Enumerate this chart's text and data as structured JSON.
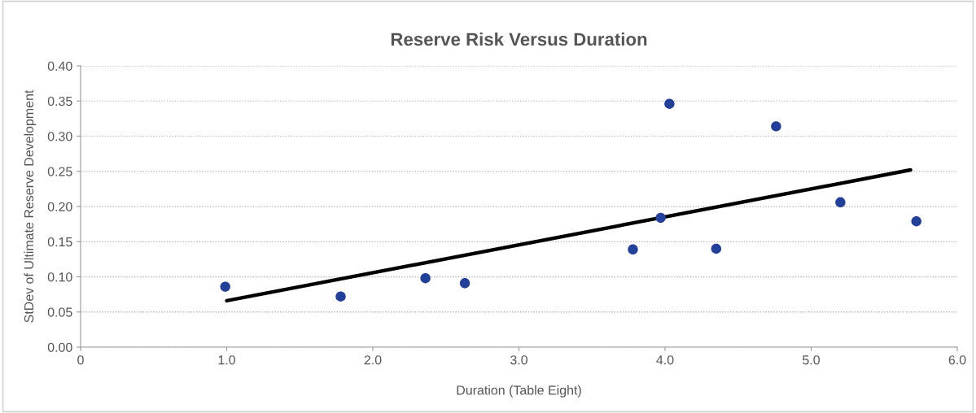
{
  "chart_data": {
    "type": "scatter",
    "title": "Reserve Risk Versus Duration",
    "xlabel": "Duration (Table Eight)",
    "ylabel": "StDev of Ultimate Reserve Development",
    "series": [
      {
        "marker": "circle",
        "color": "#22409a",
        "x": [
          0.99,
          1.78,
          2.36,
          2.63,
          3.78,
          3.97,
          4.03,
          4.35,
          4.76,
          5.2,
          5.72
        ],
        "values": [
          0.086,
          0.072,
          0.098,
          0.091,
          0.139,
          0.184,
          0.346,
          0.14,
          0.314,
          0.206,
          0.179
        ]
      },
      {
        "type": "line",
        "marker": "none",
        "color": "#000000",
        "x": [
          1.0,
          5.68
        ],
        "values": [
          0.066,
          0.252
        ]
      }
    ],
    "xlim": [
      0,
      6
    ],
    "xticks": [
      {
        "value": 0,
        "label": "0"
      },
      {
        "value": 1,
        "label": "1.0"
      },
      {
        "value": 2,
        "label": "2.0"
      },
      {
        "value": 3,
        "label": "3.0"
      },
      {
        "value": 4,
        "label": "4.0"
      },
      {
        "value": 5,
        "label": "5.0"
      },
      {
        "value": 6,
        "label": "6.0"
      }
    ],
    "ylim": [
      0,
      0.4
    ],
    "yticks": [
      {
        "value": 0,
        "label": "0.00"
      },
      {
        "value": 0.05,
        "label": "0.05"
      },
      {
        "value": 0.1,
        "label": "0.10"
      },
      {
        "value": 0.15,
        "label": "0.15"
      },
      {
        "value": 0.2,
        "label": "0.20"
      },
      {
        "value": 0.25,
        "label": "0.25"
      },
      {
        "value": 0.3,
        "label": "0.30"
      },
      {
        "value": 0.35,
        "label": "0.35"
      },
      {
        "value": 0.4,
        "label": "0.40"
      }
    ],
    "grid": "y",
    "legend": false
  }
}
